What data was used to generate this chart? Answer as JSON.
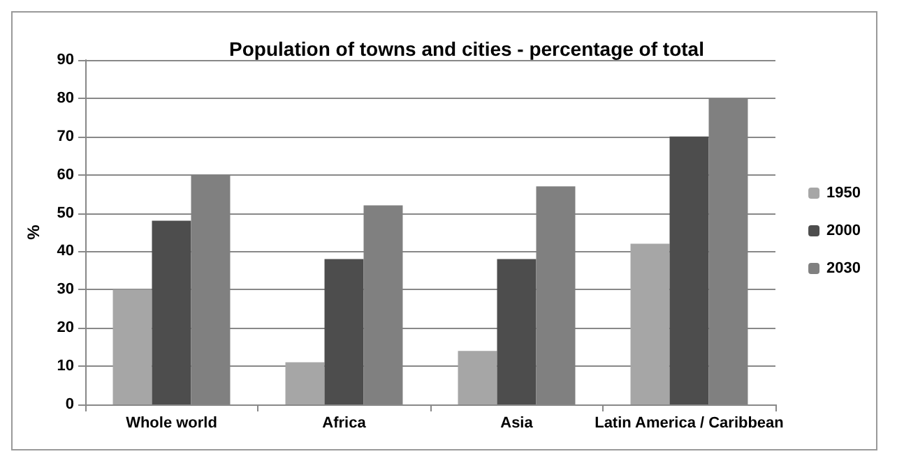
{
  "chart_data": {
    "type": "bar",
    "title": "Population of towns and cities - percentage of total",
    "ylabel": "%",
    "categories": [
      "Whole world",
      "Africa",
      "Asia",
      "Latin America / Caribbean"
    ],
    "series": [
      {
        "name": "1950",
        "color": "#a6a6a6",
        "values": [
          30,
          11,
          14,
          42
        ]
      },
      {
        "name": "2000",
        "color": "#4d4d4d",
        "values": [
          48,
          38,
          38,
          70
        ]
      },
      {
        "name": "2030",
        "color": "#808080",
        "values": [
          60,
          52,
          57,
          80
        ]
      }
    ],
    "ylim": [
      0,
      90
    ],
    "yticks": [
      0,
      10,
      20,
      30,
      40,
      50,
      60,
      70,
      80,
      90
    ],
    "grid": "y",
    "legend": "right"
  }
}
